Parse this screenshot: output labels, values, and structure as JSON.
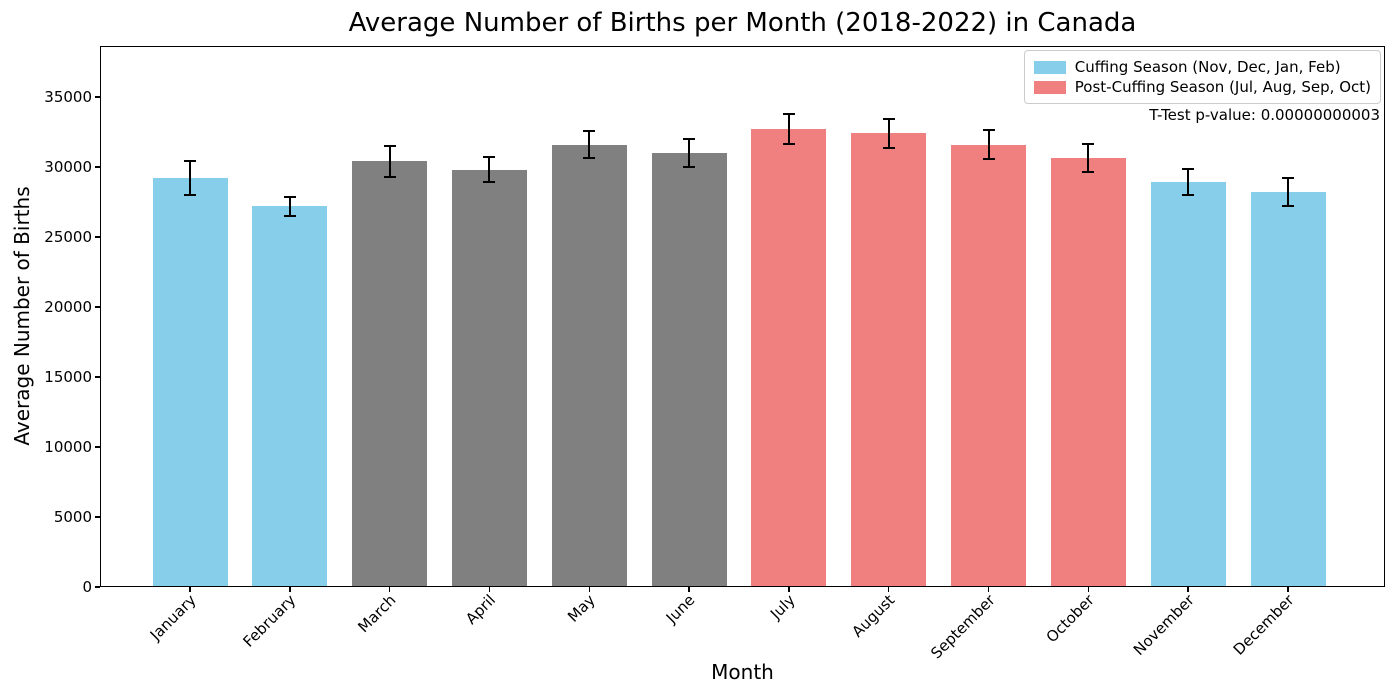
{
  "chart_data": {
    "type": "bar",
    "title": "Average Number of Births per Month (2018-2022) in Canada",
    "xlabel": "Month",
    "ylabel": "Average Number of Births",
    "categories": [
      "January",
      "February",
      "March",
      "April",
      "May",
      "June",
      "July",
      "August",
      "September",
      "October",
      "November",
      "December"
    ],
    "values": [
      29200,
      27200,
      30400,
      29800,
      31600,
      31000,
      32700,
      32400,
      31600,
      30650,
      28900,
      28250
    ],
    "errors": [
      1230,
      660,
      1100,
      890,
      980,
      1000,
      1060,
      1010,
      1040,
      1015,
      930,
      1000
    ],
    "bar_groups": [
      "cuffing",
      "cuffing",
      "other",
      "other",
      "other",
      "other",
      "post_cuffing",
      "post_cuffing",
      "post_cuffing",
      "post_cuffing",
      "cuffing",
      "cuffing"
    ],
    "group_colors": {
      "cuffing": "#87CEEB",
      "post_cuffing": "#F08080",
      "other": "#808080"
    },
    "error_bar_color": "#000000",
    "yticks": [
      0,
      5000,
      10000,
      15000,
      20000,
      25000,
      30000,
      35000
    ],
    "ylim": [
      0,
      38650
    ],
    "grid": false,
    "legend": {
      "position": "upper right",
      "entries": [
        {
          "label": "Cuffing Season (Nov, Dec, Jan, Feb)",
          "color": "#87CEEB"
        },
        {
          "label": "Post-Cuffing Season (Jul, Aug, Sep, Oct)",
          "color": "#F08080"
        }
      ]
    },
    "annotation": "T-Test p-value: 0.00000000003"
  }
}
